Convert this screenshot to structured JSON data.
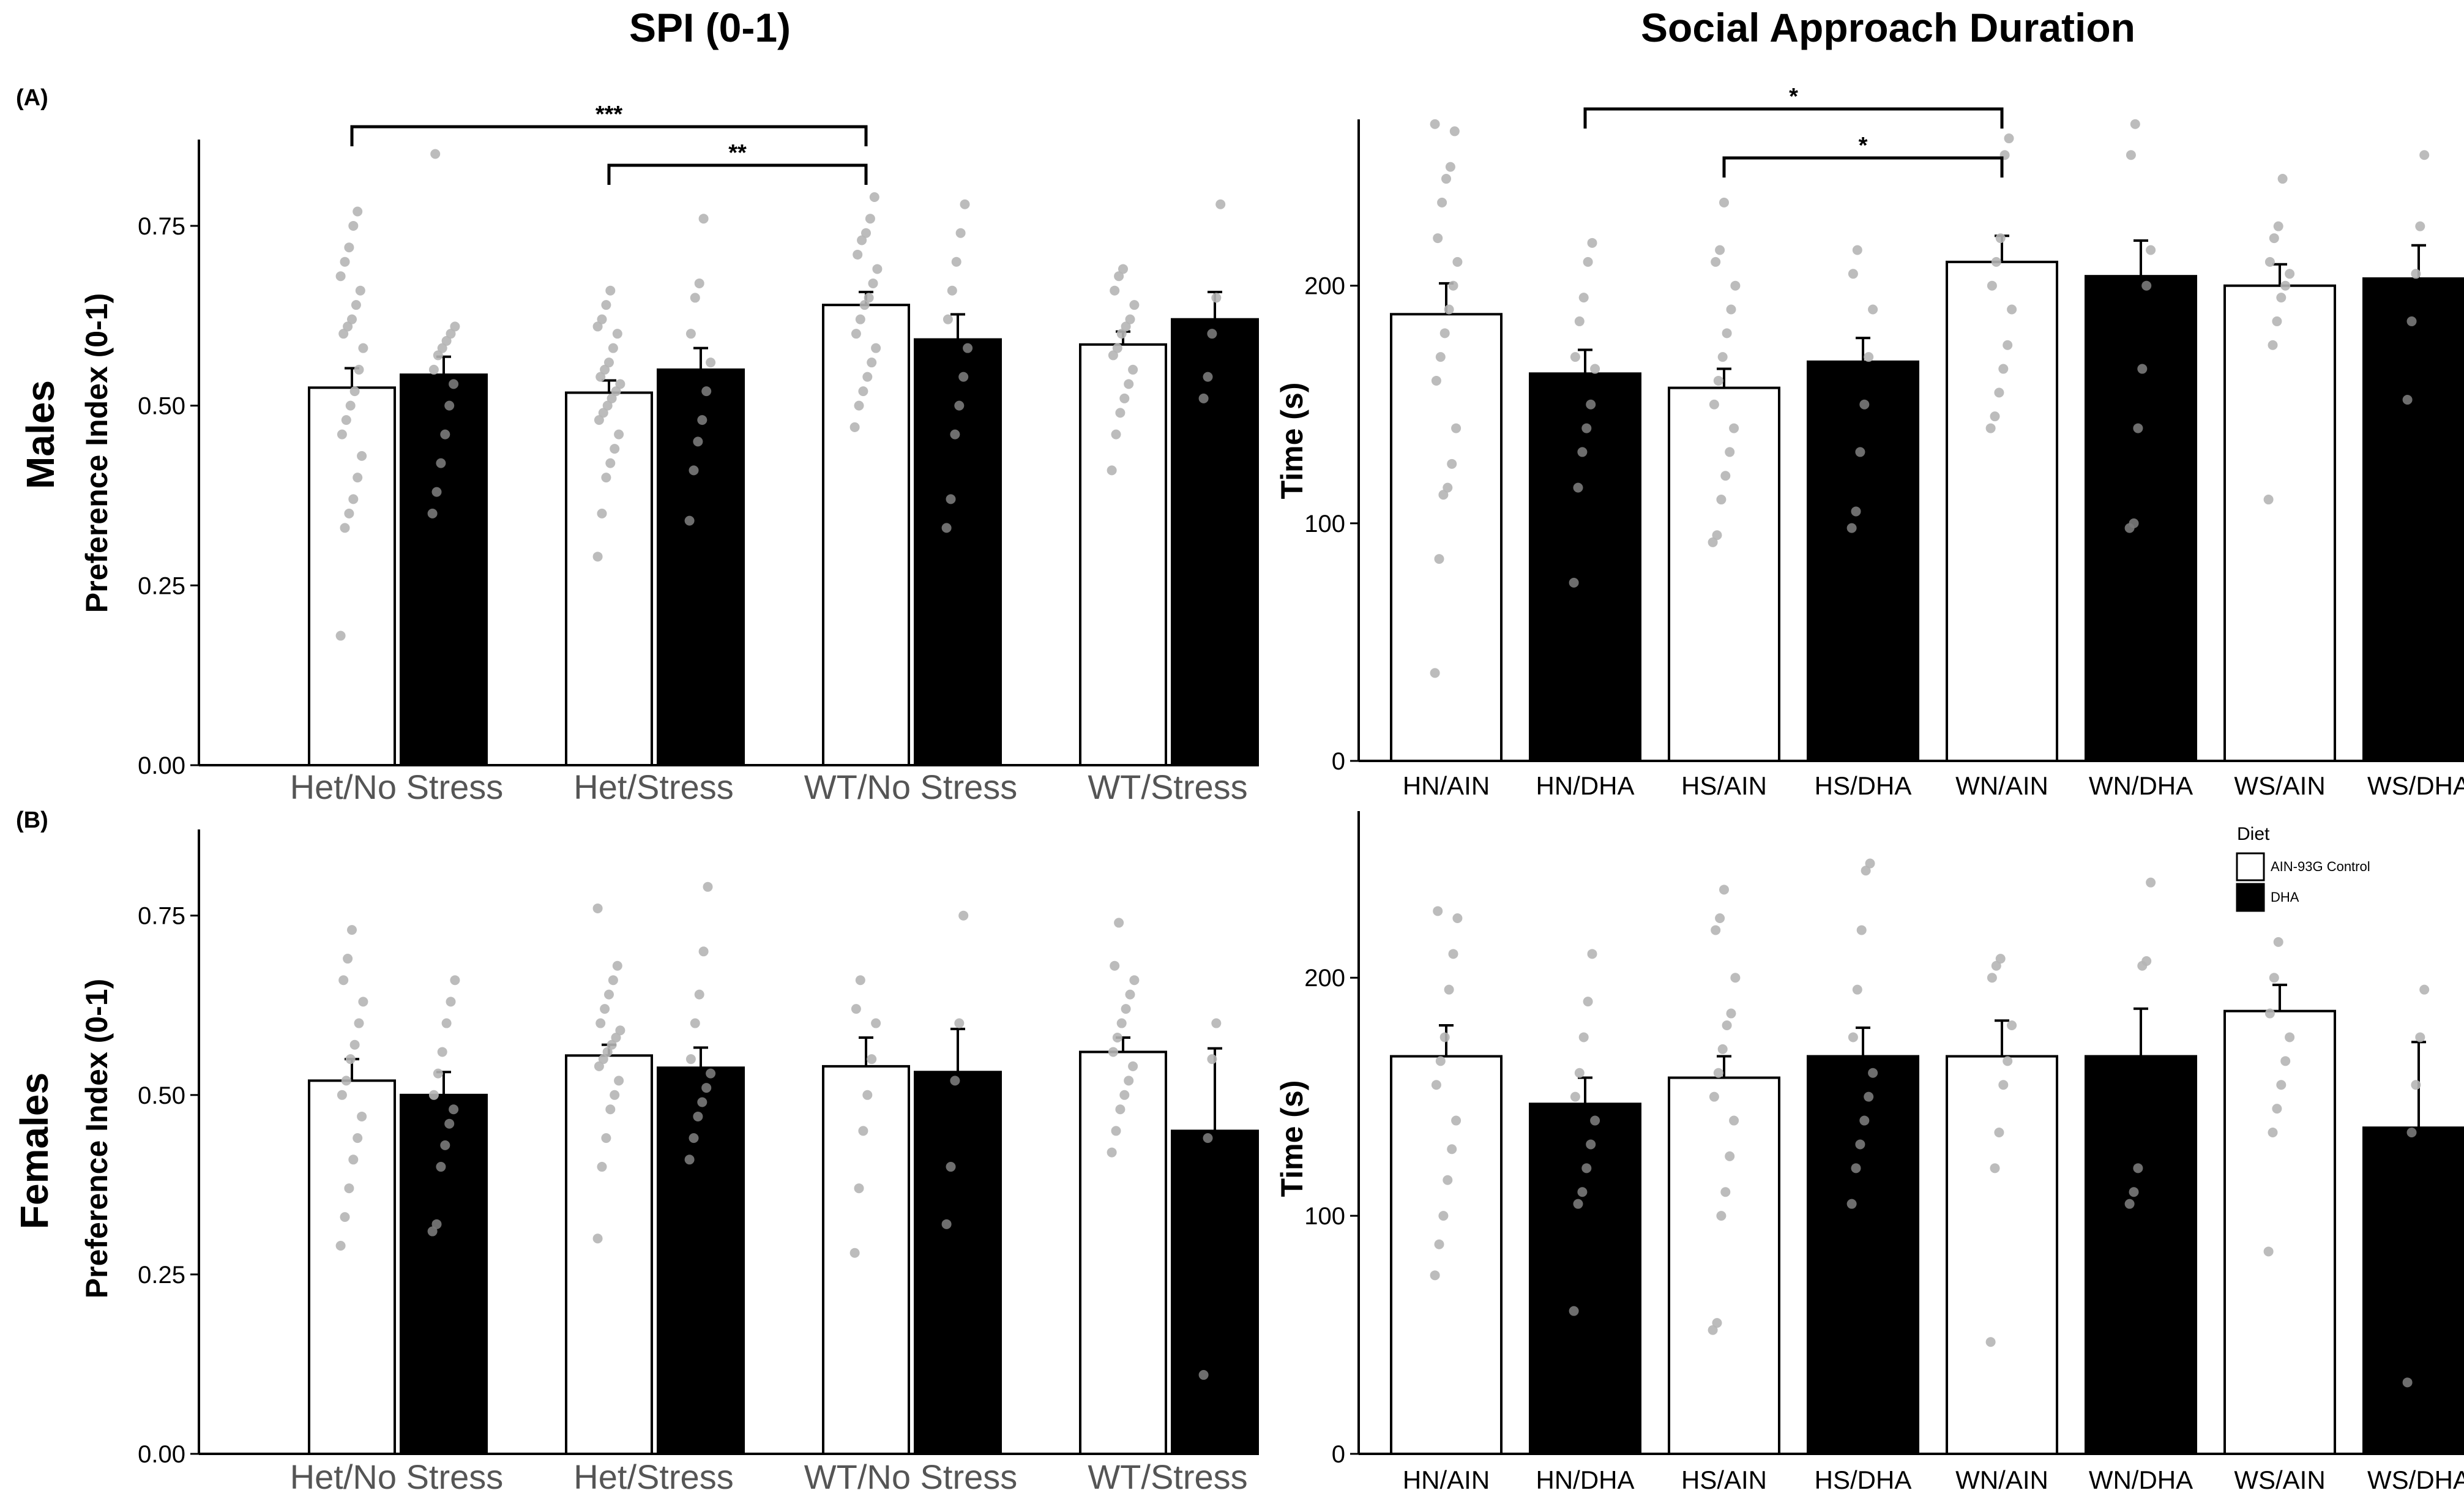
{
  "figure": {
    "col_titles": [
      "SPI (0-1)",
      "Social Approach Duration"
    ],
    "row_labels": [
      "Males",
      "Females"
    ],
    "panel_labels": [
      "(A)",
      "(B)"
    ]
  },
  "colors": {
    "control": "#ffffff",
    "dha": "#000000",
    "points": "#b5b5b5",
    "axis": "#000000",
    "spi_xtick": "#555555"
  },
  "legend": {
    "title": "Diet",
    "items": [
      {
        "label": "AIN-93G Control",
        "color": "#ffffff"
      },
      {
        "label": "DHA",
        "color": "#000000"
      }
    ]
  },
  "chart_data": [
    {
      "id": "spi_males",
      "type": "bar",
      "row": "Males",
      "title": "SPI (0-1)",
      "ylabel": "Preference Index (0-1)",
      "ylim": [
        0,
        0.87
      ],
      "yticks": [
        "0.00",
        "0.25",
        "0.50",
        "0.75"
      ],
      "categories": [
        "Het/No Stress",
        "Het/Stress",
        "WT/No Stress",
        "WT/Stress"
      ],
      "series": [
        {
          "name": "AIN-93G Control",
          "values": [
            0.525,
            0.518,
            0.64,
            0.585
          ],
          "se": [
            0.027,
            0.017,
            0.018,
            0.018
          ],
          "points": [
            [
              0.18,
              0.33,
              0.35,
              0.37,
              0.4,
              0.43,
              0.46,
              0.48,
              0.5,
              0.52,
              0.55,
              0.58,
              0.6,
              0.61,
              0.62,
              0.64,
              0.66,
              0.68,
              0.7,
              0.72,
              0.75,
              0.77
            ],
            [
              0.29,
              0.35,
              0.4,
              0.42,
              0.44,
              0.46,
              0.48,
              0.49,
              0.5,
              0.51,
              0.52,
              0.53,
              0.54,
              0.55,
              0.56,
              0.58,
              0.6,
              0.61,
              0.62,
              0.64,
              0.66
            ],
            [
              0.47,
              0.5,
              0.52,
              0.54,
              0.56,
              0.58,
              0.6,
              0.62,
              0.64,
              0.65,
              0.67,
              0.69,
              0.71,
              0.73,
              0.74,
              0.76,
              0.79
            ],
            [
              0.41,
              0.46,
              0.49,
              0.51,
              0.53,
              0.55,
              0.57,
              0.58,
              0.6,
              0.61,
              0.62,
              0.64,
              0.66,
              0.68,
              0.69
            ]
          ]
        },
        {
          "name": "DHA",
          "values": [
            0.543,
            0.55,
            0.592,
            0.62
          ],
          "se": [
            0.025,
            0.03,
            0.035,
            0.038
          ],
          "points": [
            [
              0.35,
              0.38,
              0.42,
              0.46,
              0.5,
              0.53,
              0.55,
              0.57,
              0.58,
              0.59,
              0.6,
              0.61,
              0.85
            ],
            [
              0.34,
              0.41,
              0.45,
              0.48,
              0.52,
              0.56,
              0.6,
              0.65,
              0.67,
              0.76
            ],
            [
              0.33,
              0.37,
              0.46,
              0.5,
              0.54,
              0.58,
              0.62,
              0.66,
              0.7,
              0.74,
              0.78
            ],
            [
              0.51,
              0.54,
              0.6,
              0.65,
              0.78
            ]
          ]
        }
      ],
      "significance": [
        {
          "from": "Het/No Stress",
          "to": "WT/No Stress",
          "label": "***"
        },
        {
          "from": "Het/Stress",
          "to": "WT/No Stress",
          "label": "**"
        }
      ]
    },
    {
      "id": "sad_males",
      "type": "bar",
      "row": "Males",
      "title": "Social Approach Duration",
      "ylabel": "Time (s)",
      "ylim": [
        0,
        270
      ],
      "yticks": [
        "0",
        "100",
        "200"
      ],
      "categories": [
        "HN/AIN",
        "HN/DHA",
        "HS/AIN",
        "HS/DHA",
        "WN/AIN",
        "WN/DHA",
        "WS/AIN",
        "WS/DHA"
      ],
      "diets": [
        "AIN-93G Control",
        "DHA",
        "AIN-93G Control",
        "DHA",
        "AIN-93G Control",
        "DHA",
        "AIN-93G Control",
        "DHA"
      ],
      "values": [
        188,
        163,
        157,
        168,
        210,
        204,
        200,
        203
      ],
      "se": [
        13,
        10,
        8,
        10,
        11,
        15,
        9,
        14
      ],
      "points": [
        [
          37,
          85,
          112,
          115,
          125,
          140,
          160,
          170,
          180,
          190,
          200,
          210,
          220,
          235,
          245,
          250,
          265,
          268
        ],
        [
          75,
          115,
          130,
          140,
          150,
          165,
          170,
          185,
          195,
          210,
          218
        ],
        [
          92,
          95,
          110,
          120,
          130,
          140,
          150,
          160,
          170,
          180,
          190,
          200,
          210,
          215,
          235
        ],
        [
          98,
          105,
          130,
          150,
          170,
          190,
          205,
          215
        ],
        [
          140,
          145,
          155,
          165,
          175,
          190,
          200,
          210,
          220,
          255,
          262
        ],
        [
          98,
          100,
          140,
          165,
          200,
          215,
          255,
          268
        ],
        [
          110,
          175,
          185,
          195,
          200,
          205,
          210,
          220,
          225,
          245
        ],
        [
          152,
          185,
          205,
          225,
          255
        ]
      ],
      "significance": [
        {
          "from": "HN/DHA",
          "to": "WN/AIN",
          "label": "*"
        },
        {
          "from": "HS/AIN",
          "to": "WN/AIN",
          "label": "*"
        }
      ]
    },
    {
      "id": "spi_females",
      "type": "bar",
      "row": "Females",
      "title": "SPI (0-1)",
      "ylabel": "Preference Index (0-1)",
      "ylim": [
        0,
        0.87
      ],
      "yticks": [
        "0.00",
        "0.25",
        "0.50",
        "0.75"
      ],
      "categories": [
        "Het/No Stress",
        "Het/Stress",
        "WT/No Stress",
        "WT/Stress"
      ],
      "series": [
        {
          "name": "AIN-93G Control",
          "values": [
            0.52,
            0.555,
            0.54,
            0.56
          ],
          "se": [
            0.03,
            0.015,
            0.04,
            0.02
          ],
          "points": [
            [
              0.29,
              0.33,
              0.37,
              0.41,
              0.44,
              0.47,
              0.5,
              0.52,
              0.55,
              0.57,
              0.6,
              0.63,
              0.66,
              0.69,
              0.73
            ],
            [
              0.3,
              0.4,
              0.44,
              0.48,
              0.5,
              0.52,
              0.54,
              0.55,
              0.56,
              0.57,
              0.58,
              0.59,
              0.6,
              0.62,
              0.64,
              0.66,
              0.68,
              0.76
            ],
            [
              0.28,
              0.37,
              0.45,
              0.5,
              0.55,
              0.6,
              0.62,
              0.66
            ],
            [
              0.42,
              0.45,
              0.48,
              0.5,
              0.52,
              0.54,
              0.56,
              0.58,
              0.6,
              0.62,
              0.64,
              0.66,
              0.68,
              0.74
            ]
          ]
        },
        {
          "name": "DHA",
          "values": [
            0.5,
            0.538,
            0.532,
            0.45
          ],
          "se": [
            0.032,
            0.028,
            0.06,
            0.115
          ],
          "points": [
            [
              0.31,
              0.32,
              0.4,
              0.43,
              0.46,
              0.48,
              0.5,
              0.53,
              0.56,
              0.6,
              0.63,
              0.66
            ],
            [
              0.41,
              0.44,
              0.47,
              0.49,
              0.51,
              0.53,
              0.55,
              0.6,
              0.64,
              0.7,
              0.79
            ],
            [
              0.32,
              0.4,
              0.52,
              0.6,
              0.75
            ],
            [
              0.11,
              0.44,
              0.55,
              0.6
            ]
          ]
        }
      ],
      "significance": []
    },
    {
      "id": "sad_females",
      "type": "bar",
      "row": "Females",
      "title": "Social Approach Duration",
      "ylabel": "Time (s)",
      "ylim": [
        0,
        270
      ],
      "yticks": [
        "0",
        "100",
        "200"
      ],
      "categories": [
        "HN/AIN",
        "HN/DHA",
        "HS/AIN",
        "HS/DHA",
        "WN/AIN",
        "WN/DHA",
        "WS/AIN",
        "WS/DHA"
      ],
      "diets": [
        "AIN-93G Control",
        "DHA",
        "AIN-93G Control",
        "DHA",
        "AIN-93G Control",
        "DHA",
        "AIN-93G Control",
        "DHA"
      ],
      "values": [
        167,
        147,
        158,
        167,
        167,
        167,
        186,
        137
      ],
      "se": [
        13,
        11,
        9,
        12,
        15,
        20,
        11,
        36
      ],
      "points": [
        [
          75,
          88,
          100,
          115,
          128,
          140,
          155,
          165,
          175,
          195,
          210,
          225,
          228
        ],
        [
          60,
          105,
          110,
          120,
          130,
          140,
          150,
          160,
          175,
          190,
          210
        ],
        [
          52,
          55,
          100,
          110,
          125,
          140,
          150,
          160,
          170,
          180,
          185,
          200,
          220,
          225,
          237
        ],
        [
          105,
          120,
          130,
          140,
          150,
          160,
          175,
          195,
          220,
          245,
          248
        ],
        [
          47,
          120,
          135,
          155,
          165,
          180,
          200,
          205,
          208
        ],
        [
          105,
          110,
          120,
          205,
          207,
          240
        ],
        [
          85,
          135,
          145,
          155,
          165,
          175,
          185,
          200,
          215
        ],
        [
          30,
          135,
          155,
          175,
          195
        ]
      ],
      "significance": []
    }
  ]
}
